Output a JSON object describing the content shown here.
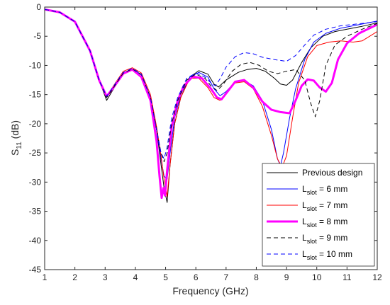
{
  "chart_data": {
    "type": "line",
    "xlabel": "Frequency (GHz)",
    "ylabel": {
      "main": "S",
      "sub": "11",
      "rest": " (dB)"
    },
    "xlim": [
      1,
      12
    ],
    "ylim": [
      -45,
      0
    ],
    "x_ticks": [
      1,
      2,
      3,
      4,
      5,
      6,
      7,
      8,
      9,
      10,
      11,
      12
    ],
    "y_ticks": [
      0,
      -5,
      -10,
      -15,
      -20,
      -25,
      -30,
      -35,
      -40,
      -45
    ],
    "grid": false,
    "legend_position": "bottom-right",
    "series": [
      {
        "name": "Previous design",
        "legend": {
          "main": "Previous design",
          "sub": "",
          "rest": ""
        },
        "color": "#000000",
        "dash": "solid",
        "width": 1,
        "points": [
          [
            1,
            -0.4
          ],
          [
            1.5,
            -0.9
          ],
          [
            2,
            -2.5
          ],
          [
            2.5,
            -7.5
          ],
          [
            2.8,
            -12.5
          ],
          [
            3.05,
            -16
          ],
          [
            3.3,
            -13.8
          ],
          [
            3.6,
            -11.5
          ],
          [
            3.9,
            -10.6
          ],
          [
            4.2,
            -11.6
          ],
          [
            4.5,
            -15.5
          ],
          [
            4.7,
            -21
          ],
          [
            4.85,
            -27
          ],
          [
            4.95,
            -31
          ],
          [
            5.05,
            -33.5
          ],
          [
            5.15,
            -27
          ],
          [
            5.3,
            -20
          ],
          [
            5.5,
            -15.5
          ],
          [
            5.8,
            -12
          ],
          [
            6.1,
            -10.9
          ],
          [
            6.4,
            -11.5
          ],
          [
            6.6,
            -13.2
          ],
          [
            6.75,
            -13.7
          ],
          [
            7,
            -12.5
          ],
          [
            7.4,
            -11.2
          ],
          [
            7.7,
            -10.7
          ],
          [
            8,
            -10.5
          ],
          [
            8.3,
            -11
          ],
          [
            8.6,
            -12.2
          ],
          [
            8.8,
            -13.2
          ],
          [
            9,
            -13.4
          ],
          [
            9.2,
            -12.5
          ],
          [
            9.5,
            -9.5
          ],
          [
            9.8,
            -7
          ],
          [
            10.2,
            -5
          ],
          [
            10.6,
            -4.2
          ],
          [
            11,
            -3.8
          ],
          [
            11.5,
            -3.3
          ],
          [
            12,
            -2.7
          ]
        ]
      },
      {
        "name": "Lslot = 6 mm",
        "legend": {
          "main": "L",
          "sub": "slot",
          "rest": " = 6 mm"
        },
        "color": "#0000ff",
        "dash": "solid",
        "width": 1,
        "points": [
          [
            1,
            -0.4
          ],
          [
            1.5,
            -0.9
          ],
          [
            2,
            -2.5
          ],
          [
            2.5,
            -7.5
          ],
          [
            2.8,
            -12.5
          ],
          [
            3.05,
            -15.5
          ],
          [
            3.3,
            -13.6
          ],
          [
            3.6,
            -11.3
          ],
          [
            3.9,
            -10.6
          ],
          [
            4.2,
            -11.6
          ],
          [
            4.5,
            -15.5
          ],
          [
            4.7,
            -21
          ],
          [
            4.85,
            -26
          ],
          [
            4.95,
            -29
          ],
          [
            5.05,
            -29.5
          ],
          [
            5.15,
            -25
          ],
          [
            5.3,
            -19
          ],
          [
            5.5,
            -15
          ],
          [
            5.8,
            -12
          ],
          [
            6.1,
            -11.2
          ],
          [
            6.4,
            -12
          ],
          [
            6.6,
            -14
          ],
          [
            6.8,
            -15.2
          ],
          [
            7,
            -14.5
          ],
          [
            7.3,
            -12.8
          ],
          [
            7.6,
            -12.6
          ],
          [
            7.9,
            -13.5
          ],
          [
            8.2,
            -16
          ],
          [
            8.5,
            -21
          ],
          [
            8.7,
            -26
          ],
          [
            8.8,
            -27.2
          ],
          [
            8.9,
            -25
          ],
          [
            9.1,
            -19
          ],
          [
            9.3,
            -14
          ],
          [
            9.6,
            -9
          ],
          [
            9.9,
            -6
          ],
          [
            10.3,
            -4.5
          ],
          [
            10.8,
            -3.6
          ],
          [
            11.3,
            -3.1
          ],
          [
            12,
            -2.4
          ]
        ]
      },
      {
        "name": "Lslot = 7 mm",
        "legend": {
          "main": "L",
          "sub": "slot",
          "rest": " = 7 mm"
        },
        "color": "#ff0000",
        "dash": "solid",
        "width": 1,
        "points": [
          [
            1,
            -0.4
          ],
          [
            1.5,
            -0.9
          ],
          [
            2,
            -2.5
          ],
          [
            2.5,
            -7.5
          ],
          [
            2.8,
            -12.5
          ],
          [
            3.05,
            -15.3
          ],
          [
            3.3,
            -13.3
          ],
          [
            3.6,
            -11
          ],
          [
            3.9,
            -10.4
          ],
          [
            4.2,
            -11.3
          ],
          [
            4.5,
            -15
          ],
          [
            4.7,
            -20.5
          ],
          [
            4.85,
            -25.5
          ],
          [
            4.95,
            -29.5
          ],
          [
            5.05,
            -32.5
          ],
          [
            5.15,
            -27
          ],
          [
            5.3,
            -20
          ],
          [
            5.5,
            -15.5
          ],
          [
            5.8,
            -12.2
          ],
          [
            6.1,
            -12.2
          ],
          [
            6.4,
            -13.8
          ],
          [
            6.6,
            -15.5
          ],
          [
            6.8,
            -16
          ],
          [
            7,
            -14.8
          ],
          [
            7.3,
            -13
          ],
          [
            7.6,
            -12.8
          ],
          [
            7.9,
            -14
          ],
          [
            8.2,
            -17
          ],
          [
            8.5,
            -22
          ],
          [
            8.7,
            -26
          ],
          [
            8.85,
            -27.5
          ],
          [
            9,
            -25.5
          ],
          [
            9.2,
            -19
          ],
          [
            9.4,
            -13
          ],
          [
            9.7,
            -8.5
          ],
          [
            10,
            -6.6
          ],
          [
            10.4,
            -6
          ],
          [
            10.8,
            -5.8
          ],
          [
            11.2,
            -6
          ],
          [
            11.5,
            -5.8
          ],
          [
            12,
            -4.2
          ]
        ]
      },
      {
        "name": "Lslot = 8 mm",
        "legend": {
          "main": "L",
          "sub": "slot",
          "rest": " = 8 mm"
        },
        "color": "#ff00ff",
        "dash": "solid",
        "width": 3,
        "points": [
          [
            1,
            -0.4
          ],
          [
            1.5,
            -0.9
          ],
          [
            2,
            -2.5
          ],
          [
            2.5,
            -7.5
          ],
          [
            2.8,
            -12.5
          ],
          [
            3.05,
            -15.3
          ],
          [
            3.3,
            -13.6
          ],
          [
            3.6,
            -11.4
          ],
          [
            3.9,
            -10.7
          ],
          [
            4.2,
            -12
          ],
          [
            4.5,
            -16
          ],
          [
            4.7,
            -23
          ],
          [
            4.8,
            -29
          ],
          [
            4.87,
            -32.7
          ],
          [
            4.93,
            -31
          ],
          [
            4.98,
            -32.3
          ],
          [
            5.05,
            -28
          ],
          [
            5.2,
            -20.5
          ],
          [
            5.4,
            -16
          ],
          [
            5.6,
            -13.5
          ],
          [
            5.9,
            -11.9
          ],
          [
            6.2,
            -12.2
          ],
          [
            6.5,
            -14
          ],
          [
            6.7,
            -15.5
          ],
          [
            6.85,
            -15.8
          ],
          [
            7.05,
            -14.5
          ],
          [
            7.3,
            -12.8
          ],
          [
            7.6,
            -12.5
          ],
          [
            7.9,
            -13.8
          ],
          [
            8.2,
            -16.2
          ],
          [
            8.5,
            -17.6
          ],
          [
            8.8,
            -18
          ],
          [
            9.1,
            -18.2
          ],
          [
            9.3,
            -16
          ],
          [
            9.5,
            -13.5
          ],
          [
            9.7,
            -12.4
          ],
          [
            9.9,
            -12.6
          ],
          [
            10.1,
            -13.8
          ],
          [
            10.3,
            -14.5
          ],
          [
            10.5,
            -13
          ],
          [
            10.7,
            -9
          ],
          [
            11,
            -6.2
          ],
          [
            11.4,
            -4.5
          ],
          [
            12,
            -3
          ]
        ]
      },
      {
        "name": "Lslot = 9 mm",
        "legend": {
          "main": "L",
          "sub": "slot",
          "rest": " = 9 mm"
        },
        "color": "#000000",
        "dash": "6,4",
        "width": 1,
        "points": [
          [
            1,
            -0.4
          ],
          [
            1.5,
            -0.9
          ],
          [
            2,
            -2.5
          ],
          [
            2.5,
            -7.5
          ],
          [
            2.8,
            -12.5
          ],
          [
            3.05,
            -15.5
          ],
          [
            3.3,
            -13.6
          ],
          [
            3.6,
            -11.3
          ],
          [
            3.9,
            -10.6
          ],
          [
            4.2,
            -11.6
          ],
          [
            4.5,
            -15.5
          ],
          [
            4.7,
            -21
          ],
          [
            4.85,
            -25
          ],
          [
            4.95,
            -26.5
          ],
          [
            5.05,
            -25
          ],
          [
            5.2,
            -20
          ],
          [
            5.4,
            -16
          ],
          [
            5.7,
            -12.5
          ],
          [
            6,
            -11.5
          ],
          [
            6.3,
            -12.2
          ],
          [
            6.5,
            -13.5
          ],
          [
            6.7,
            -14.3
          ],
          [
            6.9,
            -13.3
          ],
          [
            7.2,
            -11
          ],
          [
            7.5,
            -9.8
          ],
          [
            7.8,
            -9.5
          ],
          [
            8.1,
            -10
          ],
          [
            8.4,
            -11
          ],
          [
            8.7,
            -11.4
          ],
          [
            9,
            -11
          ],
          [
            9.3,
            -10.7
          ],
          [
            9.6,
            -12.5
          ],
          [
            9.8,
            -16.5
          ],
          [
            9.95,
            -18.8
          ],
          [
            10.1,
            -16
          ],
          [
            10.3,
            -10
          ],
          [
            10.6,
            -6.5
          ],
          [
            11,
            -5
          ],
          [
            11.5,
            -3.8
          ],
          [
            12,
            -2.8
          ]
        ]
      },
      {
        "name": "Lslot = 10 mm",
        "legend": {
          "main": "L",
          "sub": "slot",
          "rest": " = 10 mm"
        },
        "color": "#0000ff",
        "dash": "6,4",
        "width": 1,
        "points": [
          [
            1,
            -0.4
          ],
          [
            1.5,
            -0.9
          ],
          [
            2,
            -2.5
          ],
          [
            2.5,
            -7.5
          ],
          [
            2.8,
            -12.5
          ],
          [
            3.05,
            -15.3
          ],
          [
            3.3,
            -13.4
          ],
          [
            3.6,
            -11.2
          ],
          [
            3.9,
            -10.5
          ],
          [
            4.2,
            -11.5
          ],
          [
            4.5,
            -15.5
          ],
          [
            4.7,
            -21
          ],
          [
            4.85,
            -25
          ],
          [
            4.95,
            -26
          ],
          [
            5.05,
            -24
          ],
          [
            5.2,
            -19
          ],
          [
            5.4,
            -15.5
          ],
          [
            5.7,
            -12.2
          ],
          [
            6,
            -11.3
          ],
          [
            6.3,
            -12
          ],
          [
            6.5,
            -13
          ],
          [
            6.65,
            -13.5
          ],
          [
            6.8,
            -12.3
          ],
          [
            7,
            -10.3
          ],
          [
            7.3,
            -8.5
          ],
          [
            7.6,
            -7.8
          ],
          [
            7.9,
            -8
          ],
          [
            8.2,
            -8.6
          ],
          [
            8.6,
            -9
          ],
          [
            9,
            -9.3
          ],
          [
            9.3,
            -8.3
          ],
          [
            9.6,
            -6.5
          ],
          [
            9.9,
            -4.8
          ],
          [
            10.3,
            -3.8
          ],
          [
            10.8,
            -3.2
          ],
          [
            11.5,
            -2.8
          ],
          [
            12,
            -2.5
          ]
        ]
      }
    ]
  }
}
